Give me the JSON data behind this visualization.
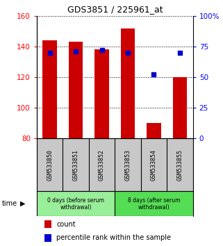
{
  "title": "GDS3851 / 225961_at",
  "samples": [
    "GSM533850",
    "GSM533851",
    "GSM533852",
    "GSM533853",
    "GSM533854",
    "GSM533855"
  ],
  "bar_values": [
    144,
    143,
    138,
    152,
    90,
    120
  ],
  "bar_bottom": 80,
  "percentile_values": [
    70,
    71,
    72,
    70,
    52,
    70
  ],
  "bar_color": "#cc0000",
  "percentile_color": "#0000cc",
  "ylim_left": [
    80,
    160
  ],
  "ylim_right": [
    0,
    100
  ],
  "yticks_left": [
    80,
    100,
    120,
    140,
    160
  ],
  "yticks_right": [
    0,
    25,
    50,
    75,
    100
  ],
  "ytick_labels_right": [
    "0",
    "25",
    "50",
    "75",
    "100%"
  ],
  "group1_label": "0 days (before serum\nwithdrawal)",
  "group2_label": "8 days (after serum\nwithdrawal)",
  "group1_indices": [
    0,
    1,
    2
  ],
  "group2_indices": [
    3,
    4,
    5
  ],
  "time_label": "time",
  "legend_count": "count",
  "legend_percentile": "percentile rank within the sample",
  "bg_color_samples": "#c8c8c8",
  "bg_color_group1": "#99ee99",
  "bg_color_group2": "#55dd55",
  "bar_width": 0.55
}
